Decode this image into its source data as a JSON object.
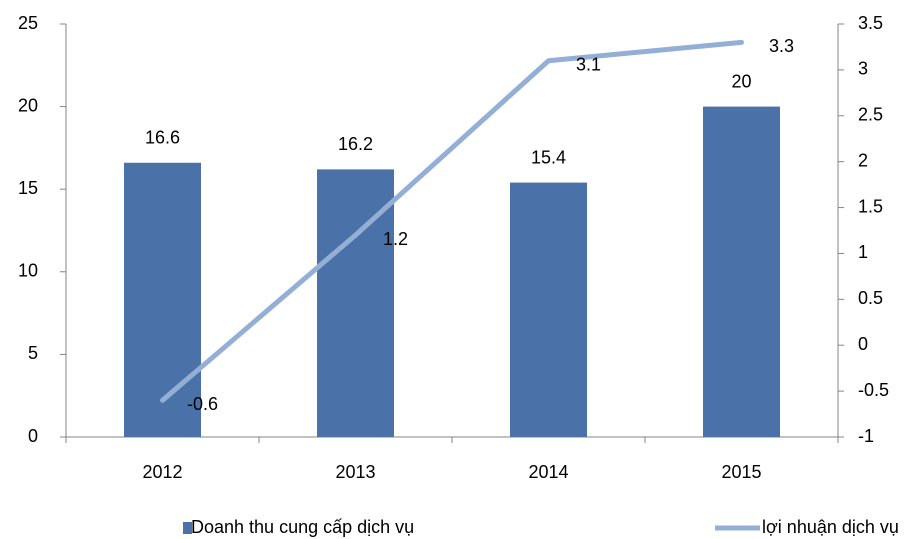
{
  "chart_data": {
    "type": "bar-line",
    "categories": [
      "2012",
      "2013",
      "2014",
      "2015"
    ],
    "series": [
      {
        "name": "Doanh thu cung cấp dịch vụ",
        "type": "bar",
        "color": "#4a72a8",
        "values": [
          16.6,
          16.2,
          15.4,
          20
        ]
      },
      {
        "name": "lợi nhuận dịch vụ",
        "type": "line",
        "axis": "y2",
        "color": "#94afd6",
        "values": [
          -0.6,
          1.2,
          3.1,
          3.3
        ]
      }
    ],
    "ylim": [
      0,
      25
    ],
    "yticks": [
      0,
      5,
      10,
      15,
      20,
      25
    ],
    "y2lim": [
      -1,
      3.5
    ],
    "y2ticks": [
      -1,
      -0.5,
      0,
      0.5,
      1,
      1.5,
      2,
      2.5,
      3,
      3.5
    ],
    "grid": false,
    "legend": "bottom"
  }
}
